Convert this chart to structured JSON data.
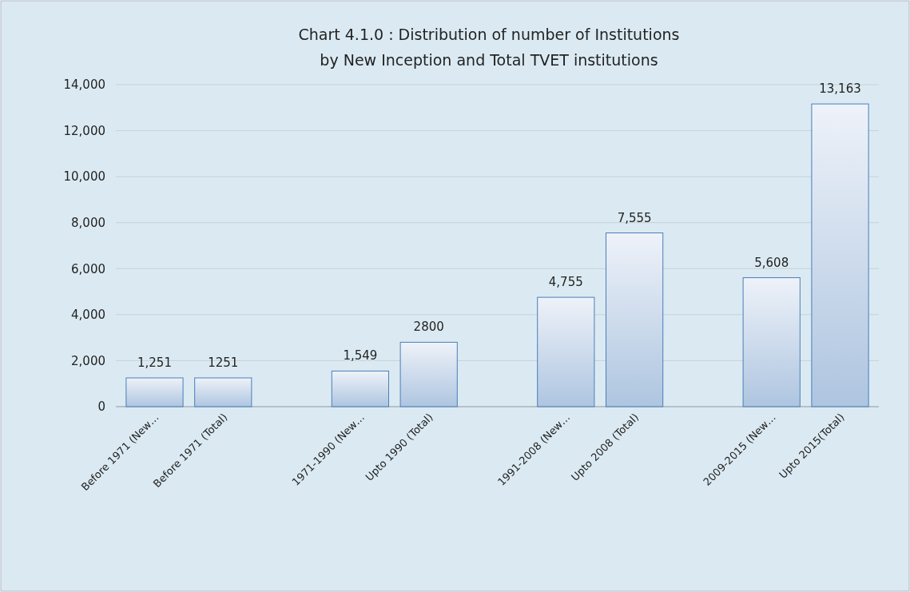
{
  "chart_data": {
    "type": "bar",
    "title": "Chart  4.1.0 : Distribution of number of Institutions\nby New Inception and Total TVET institutions",
    "categories": [
      "Before 1971 (New…",
      "Before 1971 (Total)",
      null,
      "1971-1990 (New…",
      "Upto 1990 (Total)",
      null,
      "1991-2008 (New…",
      "Upto 2008 (Total)",
      null,
      "2009-2015 (New…",
      "Upto 2015(Total)"
    ],
    "values": [
      1251,
      1251,
      null,
      1549,
      2800,
      null,
      4755,
      7555,
      null,
      5608,
      13163
    ],
    "value_labels": [
      "1,251",
      "1251",
      null,
      "1,549",
      "2800",
      null,
      "4,755",
      "7,555",
      null,
      "5,608",
      "13,163"
    ],
    "color": "#4a7ebb",
    "ylim": [
      0,
      14000
    ],
    "yticks": [
      0,
      {
        "value": 2000,
        "label": "2,000"
      },
      {
        "value": 4000,
        "label": "4,000"
      },
      {
        "value": 6000,
        "label": "6,000"
      },
      {
        "value": 8000,
        "label": "8,000"
      },
      {
        "value": 10000,
        "label": "10,000"
      },
      {
        "value": 12000,
        "label": "12,000"
      },
      {
        "value": 14000,
        "label": "14,000"
      }
    ],
    "grid": "y"
  }
}
